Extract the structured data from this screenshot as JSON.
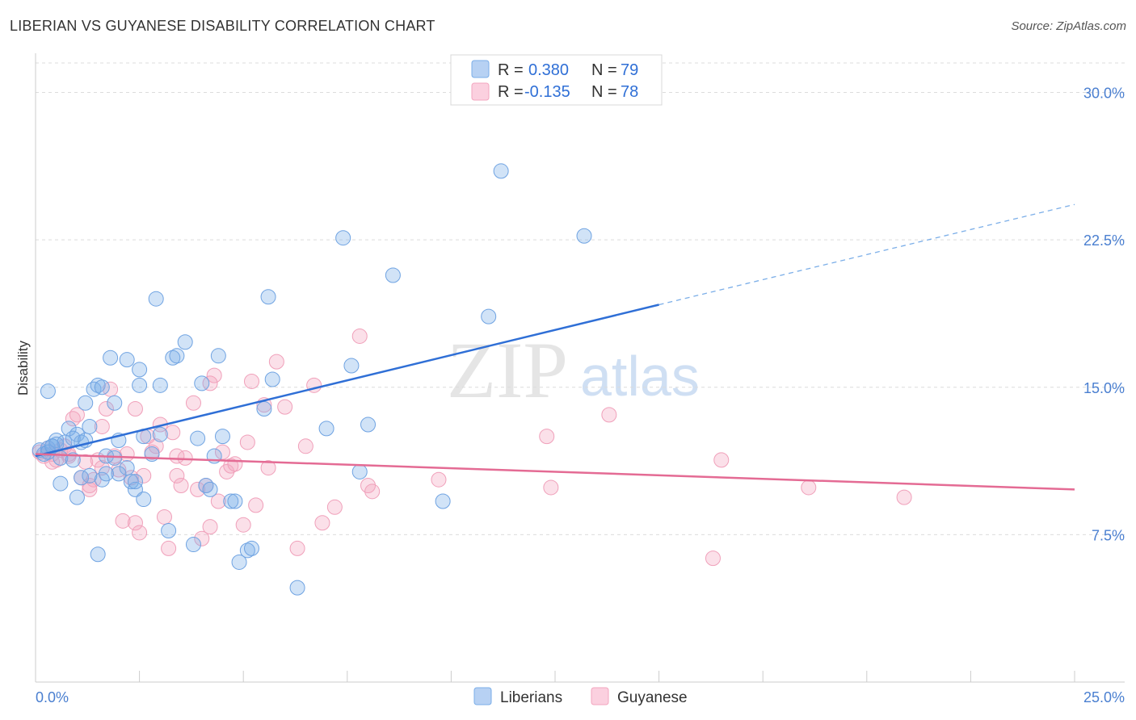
{
  "title": "LIBERIAN VS GUYANESE DISABILITY CORRELATION CHART",
  "source": "Source: ZipAtlas.com",
  "watermark": {
    "zip": "ZIP",
    "atlas": "atlas"
  },
  "legend": {
    "rows": [
      {
        "r_label": "R =",
        "r_value": "0.380",
        "n_label": "N =",
        "n_value": "79",
        "color": "#7baee8"
      },
      {
        "r_label": "R =",
        "r_value": "-0.135",
        "n_label": "N =",
        "n_value": "78",
        "color": "#f3a6bf"
      }
    ]
  },
  "bottom_legend": [
    {
      "label": "Liberians",
      "color": "#7baee8"
    },
    {
      "label": "Guyanese",
      "color": "#f3a6bf"
    }
  ],
  "chart_data": {
    "type": "scatter",
    "title": "LIBERIAN VS GUYANESE DISABILITY CORRELATION CHART",
    "xlabel": "",
    "ylabel": "Disability",
    "xlim": [
      0,
      25
    ],
    "ylim": [
      0,
      31.5
    ],
    "x_tick_labels": [
      "0.0%",
      "25.0%"
    ],
    "y_ticks": [
      7.5,
      15.0,
      22.5,
      30.0
    ],
    "y_tick_labels": [
      "7.5%",
      "15.0%",
      "22.5%",
      "30.0%"
    ],
    "grid": true,
    "colors": {
      "liberians": "#2f6fd6",
      "guyanese": "#e46b94"
    },
    "series": [
      {
        "name": "Liberians",
        "trend": {
          "x": [
            0,
            15,
            25
          ],
          "y": [
            11.5,
            19.2,
            24.3
          ],
          "solid_until": 15
        },
        "points": [
          [
            0.1,
            11.8
          ],
          [
            0.2,
            11.6
          ],
          [
            0.3,
            11.9
          ],
          [
            0.4,
            12.0
          ],
          [
            0.5,
            12.3
          ],
          [
            0.6,
            11.4
          ],
          [
            0.5,
            12.1
          ],
          [
            0.3,
            11.7
          ],
          [
            0.7,
            12.2
          ],
          [
            0.8,
            12.9
          ],
          [
            0.9,
            11.3
          ],
          [
            1.0,
            12.6
          ],
          [
            1.1,
            12.2
          ],
          [
            1.2,
            14.2
          ],
          [
            0.3,
            14.8
          ],
          [
            0.9,
            12.4
          ],
          [
            1.3,
            13.0
          ],
          [
            1.4,
            14.9
          ],
          [
            1.5,
            15.1
          ],
          [
            1.6,
            15.0
          ],
          [
            1.7,
            11.5
          ],
          [
            1.8,
            16.5
          ],
          [
            1.9,
            11.4
          ],
          [
            2.0,
            12.3
          ],
          [
            2.2,
            10.9
          ],
          [
            2.3,
            10.2
          ],
          [
            2.4,
            9.8
          ],
          [
            2.5,
            15.1
          ],
          [
            2.6,
            9.3
          ],
          [
            2.2,
            16.4
          ],
          [
            2.0,
            10.6
          ],
          [
            2.5,
            15.9
          ],
          [
            2.8,
            11.6
          ],
          [
            2.9,
            19.5
          ],
          [
            3.0,
            12.6
          ],
          [
            3.2,
            7.7
          ],
          [
            3.3,
            16.5
          ],
          [
            3.4,
            16.6
          ],
          [
            3.6,
            17.3
          ],
          [
            3.8,
            7.0
          ],
          [
            3.9,
            12.4
          ],
          [
            4.0,
            15.2
          ],
          [
            4.1,
            10.0
          ],
          [
            4.2,
            9.8
          ],
          [
            4.3,
            11.5
          ],
          [
            4.4,
            16.6
          ],
          [
            4.5,
            12.5
          ],
          [
            4.7,
            9.2
          ],
          [
            4.8,
            9.2
          ],
          [
            4.9,
            6.1
          ],
          [
            5.1,
            6.7
          ],
          [
            5.2,
            6.8
          ],
          [
            5.5,
            13.9
          ],
          [
            5.6,
            19.6
          ],
          [
            5.7,
            15.4
          ],
          [
            6.3,
            4.8
          ],
          [
            7.0,
            12.9
          ],
          [
            7.4,
            22.6
          ],
          [
            7.6,
            16.1
          ],
          [
            7.8,
            10.7
          ],
          [
            8.0,
            13.1
          ],
          [
            8.6,
            20.7
          ],
          [
            9.8,
            9.2
          ],
          [
            10.9,
            18.6
          ],
          [
            11.2,
            26.0
          ],
          [
            13.2,
            22.7
          ],
          [
            1.5,
            6.5
          ],
          [
            1.0,
            9.4
          ],
          [
            0.6,
            10.1
          ],
          [
            1.1,
            10.4
          ],
          [
            1.3,
            10.5
          ],
          [
            1.6,
            10.3
          ],
          [
            1.7,
            10.6
          ],
          [
            2.4,
            10.2
          ],
          [
            1.2,
            12.3
          ],
          [
            0.4,
            12.0
          ],
          [
            3.0,
            15.1
          ],
          [
            1.9,
            14.2
          ],
          [
            2.6,
            12.5
          ]
        ]
      },
      {
        "name": "Guyanese",
        "trend": {
          "x": [
            0,
            25
          ],
          "y": [
            11.6,
            9.8
          ]
        },
        "points": [
          [
            0.1,
            11.7
          ],
          [
            0.2,
            11.5
          ],
          [
            0.3,
            11.9
          ],
          [
            0.4,
            11.6
          ],
          [
            0.5,
            11.3
          ],
          [
            0.6,
            11.8
          ],
          [
            0.7,
            12.0
          ],
          [
            0.8,
            11.5
          ],
          [
            0.9,
            13.4
          ],
          [
            1.0,
            13.6
          ],
          [
            1.1,
            10.4
          ],
          [
            1.2,
            11.2
          ],
          [
            1.3,
            10.0
          ],
          [
            1.4,
            10.3
          ],
          [
            1.5,
            11.3
          ],
          [
            1.6,
            10.9
          ],
          [
            1.7,
            13.9
          ],
          [
            1.8,
            14.9
          ],
          [
            1.9,
            11.5
          ],
          [
            2.0,
            10.8
          ],
          [
            2.1,
            8.2
          ],
          [
            2.2,
            11.6
          ],
          [
            2.3,
            10.4
          ],
          [
            2.4,
            8.1
          ],
          [
            2.5,
            7.6
          ],
          [
            2.6,
            10.5
          ],
          [
            2.7,
            12.5
          ],
          [
            2.8,
            11.7
          ],
          [
            2.9,
            12.0
          ],
          [
            3.0,
            13.1
          ],
          [
            3.1,
            8.4
          ],
          [
            3.2,
            6.8
          ],
          [
            3.3,
            12.7
          ],
          [
            3.4,
            11.5
          ],
          [
            3.5,
            10.0
          ],
          [
            3.6,
            11.4
          ],
          [
            3.8,
            14.2
          ],
          [
            3.9,
            9.8
          ],
          [
            4.0,
            7.3
          ],
          [
            4.1,
            10.0
          ],
          [
            4.2,
            7.9
          ],
          [
            4.3,
            15.6
          ],
          [
            4.4,
            9.2
          ],
          [
            4.5,
            11.7
          ],
          [
            4.6,
            10.7
          ],
          [
            4.7,
            11.0
          ],
          [
            4.8,
            11.1
          ],
          [
            5.0,
            8.0
          ],
          [
            5.2,
            15.3
          ],
          [
            5.3,
            9.0
          ],
          [
            5.5,
            14.1
          ],
          [
            5.6,
            10.9
          ],
          [
            5.8,
            16.3
          ],
          [
            6.0,
            14.0
          ],
          [
            6.3,
            6.8
          ],
          [
            6.5,
            12.0
          ],
          [
            6.7,
            15.1
          ],
          [
            6.9,
            8.1
          ],
          [
            7.2,
            8.9
          ],
          [
            7.8,
            17.6
          ],
          [
            8.0,
            10.0
          ],
          [
            8.1,
            9.7
          ],
          [
            9.7,
            10.3
          ],
          [
            12.3,
            12.5
          ],
          [
            12.4,
            9.9
          ],
          [
            13.8,
            13.6
          ],
          [
            16.3,
            6.3
          ],
          [
            16.5,
            11.3
          ],
          [
            18.6,
            9.9
          ],
          [
            20.9,
            9.4
          ],
          [
            0.4,
            11.2
          ],
          [
            0.8,
            11.6
          ],
          [
            1.3,
            9.8
          ],
          [
            1.6,
            13.0
          ],
          [
            2.4,
            13.9
          ],
          [
            3.4,
            10.5
          ],
          [
            4.2,
            15.2
          ],
          [
            5.1,
            12.2
          ]
        ]
      }
    ]
  }
}
